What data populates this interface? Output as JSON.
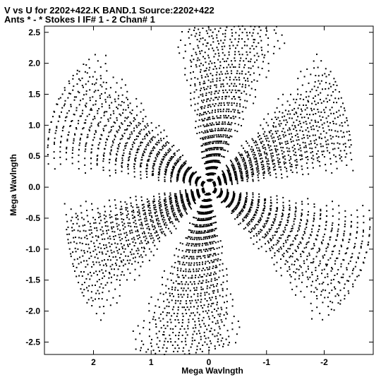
{
  "chart_data": {
    "type": "scatter",
    "title_line1": "V vs U for 2202+422.K BAND.1   Source:2202+422",
    "title_line2": "Ants * - *     Stokes I  IF# 1 - 2  Chan# 1",
    "xlabel": "Mega Wavlngth",
    "ylabel": "Mega Wavlngth",
    "xlim": [
      2.85,
      -2.85
    ],
    "ylim": [
      -2.7,
      2.6
    ],
    "xticks": [
      2,
      1,
      0,
      -1,
      -2
    ],
    "xtick_labels": [
      "2",
      "1",
      "0",
      "-1",
      "-2"
    ],
    "yticks": [
      2.5,
      2.0,
      1.5,
      1.0,
      0.5,
      0.0,
      -0.5,
      -1.0,
      -1.5,
      -2.0,
      -2.5
    ],
    "ytick_labels": [
      "2.5",
      "2.0",
      "1.5",
      "1.0",
      "0.5",
      "0.0",
      "-0.5",
      "-1.0",
      "-1.5",
      "-2.0",
      "-2.5"
    ],
    "grid": false,
    "marker_color": "#000000",
    "point_style": "small dots",
    "uv_coverage": {
      "baseline_directions_deg": [
        28,
        98,
        152,
        208,
        278,
        332
      ],
      "ring_spacing": 0.105,
      "ring_count": 26,
      "track_span_deg": 34,
      "points_per_track": 16
    }
  }
}
